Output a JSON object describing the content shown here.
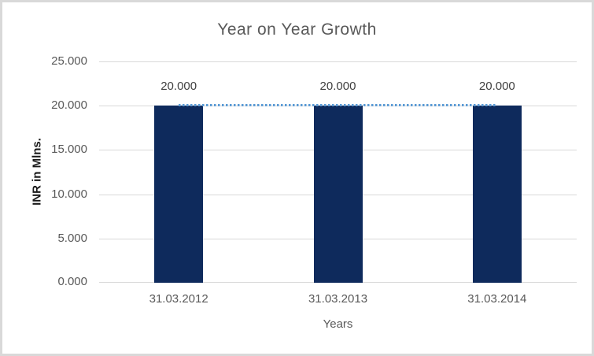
{
  "chart_data": {
    "type": "bar",
    "title": "Year on Year Growth",
    "xlabel": "Years",
    "ylabel": "INR in Mlns.",
    "categories": [
      "31.03.2012",
      "31.03.2013",
      "31.03.2014"
    ],
    "series": [
      {
        "name": "INR in Mlns.",
        "values": [
          20000,
          20000,
          20000
        ]
      }
    ],
    "data_labels": [
      "20.000",
      "20.000",
      "20.000"
    ],
    "ylim": [
      0,
      25000
    ],
    "yticks": [
      {
        "value": 0,
        "label": "0.000"
      },
      {
        "value": 5000,
        "label": "5.000"
      },
      {
        "value": 10000,
        "label": "10.000"
      },
      {
        "value": 15000,
        "label": "15.000"
      },
      {
        "value": 20000,
        "label": "20.000"
      },
      {
        "value": 25000,
        "label": "25.000"
      }
    ],
    "grid": true,
    "legend": "none",
    "trendline": {
      "style": "dotted",
      "value": 20000,
      "from_category_index": 0,
      "to_category_index": 2
    }
  },
  "colors": {
    "bar": "#0e2a5c",
    "trendline": "#5b9bd5",
    "gridline": "#d9d9d9",
    "border": "#d9d9d9",
    "axis_text": "#595959",
    "title_text": "#595959",
    "data_label_text": "#404040",
    "y_axis_title_text": "#1a1a1a",
    "background": "#ffffff"
  }
}
